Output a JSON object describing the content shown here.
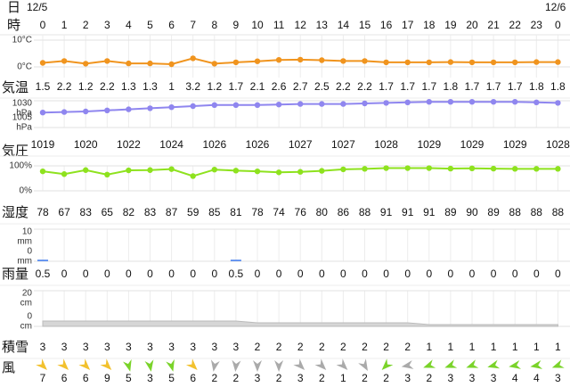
{
  "dates": [
    "12/5",
    "12/6"
  ],
  "row_labels": {
    "day": "日",
    "hour": "時"
  },
  "hours": [
    0,
    1,
    2,
    3,
    4,
    5,
    6,
    7,
    8,
    9,
    10,
    11,
    12,
    13,
    14,
    15,
    16,
    17,
    18,
    19,
    20,
    21,
    22,
    23,
    0
  ],
  "chart_data": [
    {
      "type": "line",
      "label": "気温",
      "color": "#f0941e",
      "values": [
        1.5,
        2.2,
        1.2,
        2.2,
        1.3,
        1.3,
        1,
        3.2,
        1.2,
        1.7,
        2.1,
        2.6,
        2.7,
        2.5,
        2.2,
        2.2,
        1.7,
        1.7,
        1.7,
        1.8,
        1.7,
        1.7,
        1.7,
        1.8,
        1.8
      ],
      "ylim": [
        -4,
        12
      ],
      "yticks": [
        {
          "value": 10,
          "label": "10°C"
        },
        {
          "value": 0,
          "label": "0°C"
        }
      ]
    },
    {
      "type": "line",
      "label": "気圧",
      "color": "#8f86ef",
      "unit": "hPa",
      "values": [
        1019,
        1019.5,
        1020,
        1021,
        1022,
        1023,
        1024,
        1025,
        1026,
        1026,
        1026,
        1026.5,
        1027,
        1027,
        1027,
        1027.5,
        1028,
        1028.5,
        1029,
        1029,
        1029,
        1029,
        1029,
        1028.5,
        1028
      ],
      "value_labels": [
        "1019",
        null,
        "1020",
        null,
        "1022",
        null,
        "1024",
        null,
        "1026",
        null,
        "1026",
        null,
        "1027",
        null,
        "1027",
        null,
        "1028",
        null,
        "1029",
        null,
        "1029",
        null,
        "1029",
        null,
        "1028"
      ],
      "ylim": [
        1005,
        1030
      ],
      "yticks": [
        1030,
        1005
      ]
    },
    {
      "type": "line",
      "label": "湿度",
      "color": "#8ee21e",
      "values": [
        78,
        67,
        83,
        65,
        82,
        83,
        87,
        59,
        85,
        81,
        78,
        74,
        76,
        80,
        86,
        88,
        91,
        91,
        91,
        89,
        90,
        89,
        88,
        88,
        88
      ],
      "ylim": [
        0,
        100
      ],
      "yticks": [
        {
          "value": 100,
          "label": "100%"
        },
        {
          "value": 0,
          "label": "0%"
        }
      ]
    },
    {
      "type": "bar",
      "label": "雨量",
      "color": "#5b8def",
      "unit": "mm",
      "values": [
        0.5,
        0,
        0,
        0,
        0,
        0,
        0,
        0,
        0,
        0.5,
        0,
        0,
        0,
        0,
        0,
        0,
        0,
        0,
        0,
        0,
        0,
        0,
        0,
        0,
        0
      ],
      "ylim": [
        0,
        10
      ],
      "yticks": [
        10,
        0
      ]
    },
    {
      "type": "area",
      "label": "積雪",
      "color": "#d6d6d6",
      "unit": "cm",
      "values": [
        3,
        3,
        3,
        3,
        3,
        3,
        3,
        3,
        3,
        3,
        2,
        2,
        2,
        2,
        2,
        2,
        2,
        2,
        1,
        1,
        1,
        1,
        1,
        1,
        1
      ],
      "ylim": [
        0,
        20
      ],
      "yticks": [
        20,
        0
      ]
    }
  ],
  "wind": {
    "label": "風",
    "speeds": [
      7,
      6,
      6,
      9,
      5,
      3,
      5,
      6,
      2,
      2,
      3,
      2,
      3,
      2,
      1,
      2,
      2,
      3,
      2,
      3,
      3,
      3,
      4,
      4,
      3
    ],
    "colors": [
      "#f2c12e",
      "#f2c12e",
      "#f2c12e",
      "#f2c12e",
      "#7ad32a",
      "#7ad32a",
      "#7ad32a",
      "#f2c12e",
      "#aaaaaa",
      "#aaaaaa",
      "#aaaaaa",
      "#aaaaaa",
      "#aaaaaa",
      "#aaaaaa",
      "#aaaaaa",
      "#aaaaaa",
      "#7ad32a",
      "#aaaaaa",
      "#7ad32a",
      "#7ad32a",
      "#7ad32a",
      "#7ad32a",
      "#7ad32a",
      "#7ad32a",
      "#7ad32a"
    ],
    "directions": [
      135,
      135,
      135,
      135,
      165,
      170,
      165,
      135,
      190,
      185,
      180,
      180,
      135,
      135,
      135,
      150,
      225,
      260,
      250,
      250,
      250,
      255,
      260,
      260,
      250
    ]
  }
}
